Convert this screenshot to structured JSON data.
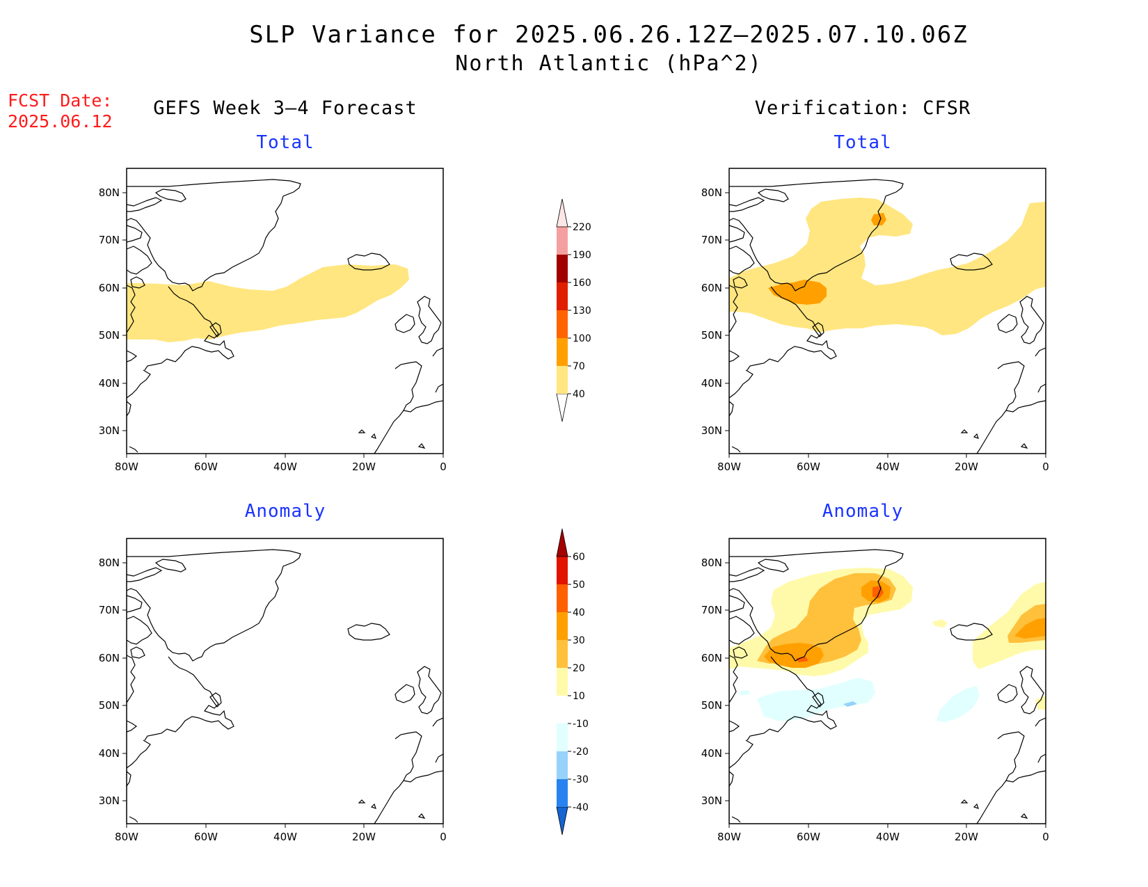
{
  "title_line1": "SLP Variance for 2025.06.26.12Z–2025.07.10.06Z",
  "title_line2": "North Atlantic (hPa^2)",
  "fcst_label": "FCST Date:",
  "fcst_date": "2025.06.12",
  "left_column_title": "GEFS Week 3–4 Forecast",
  "right_column_title": "Verification: CFSR",
  "panels": {
    "top_left": "Total",
    "top_right": "Total",
    "bottom_left": "Anomaly",
    "bottom_right": "Anomaly"
  },
  "lat_labels": [
    "80N",
    "70N",
    "60N",
    "50N",
    "40N",
    "30N"
  ],
  "lon_labels": [
    "80W",
    "60W",
    "40W",
    "20W",
    "0"
  ],
  "total_colorbar": {
    "levels": [
      "40",
      "70",
      "100",
      "130",
      "160",
      "190",
      "220"
    ],
    "colors": [
      "#ffe680",
      "#ffa000",
      "#ff6400",
      "#e01e00",
      "#a00000",
      "#f5a0a0",
      "#fde6e6"
    ]
  },
  "anomaly_colorbar": {
    "levels": [
      "-40",
      "-30",
      "-20",
      "-10",
      "10",
      "20",
      "30",
      "40",
      "50",
      "60"
    ],
    "colors": [
      "#1464d2",
      "#2882f0",
      "#96d2fa",
      "#e1ffff",
      "#ffffff",
      "#fffaaa",
      "#ffc03c",
      "#ffa000",
      "#ff6000",
      "#e11400",
      "#a50000"
    ]
  }
}
